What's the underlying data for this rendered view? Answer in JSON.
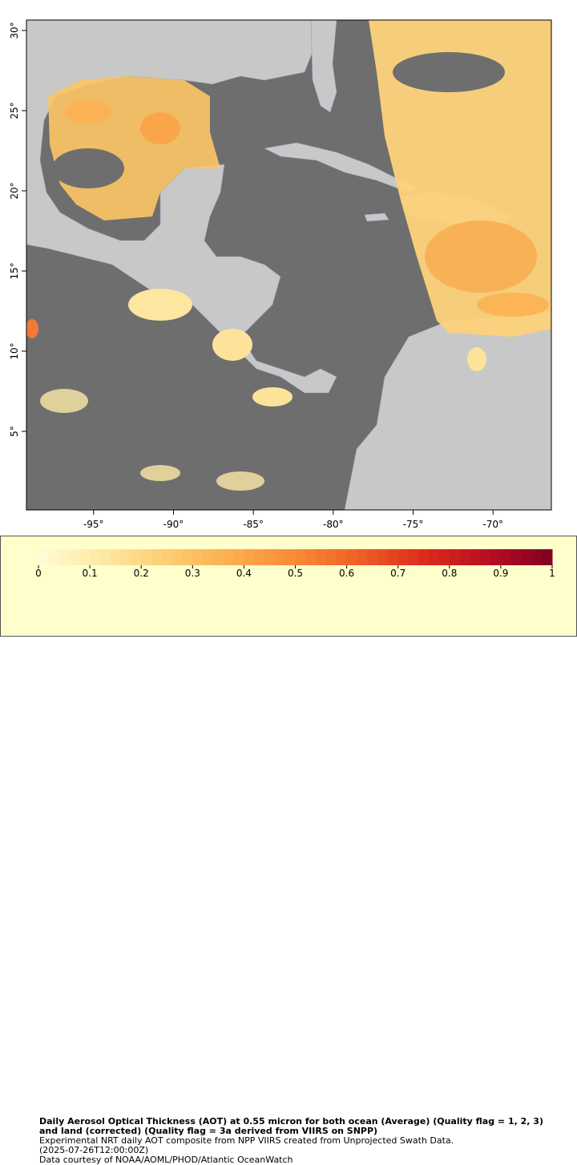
{
  "map": {
    "xlim": [
      -99.2,
      -66.35
    ],
    "ylim": [
      0.1,
      30.65
    ],
    "xticks": [
      {
        "value": -95,
        "label": "-95°"
      },
      {
        "value": -90,
        "label": "-90°"
      },
      {
        "value": -85,
        "label": "-85°"
      },
      {
        "value": -80,
        "label": "-80°"
      },
      {
        "value": -75,
        "label": "-75°"
      },
      {
        "value": -70,
        "label": "-70°"
      }
    ],
    "yticks": [
      {
        "value": 5,
        "label": "5°"
      },
      {
        "value": 10,
        "label": "10°"
      },
      {
        "value": 15,
        "label": "15°"
      },
      {
        "value": 20,
        "label": "20°"
      },
      {
        "value": 25,
        "label": "25°"
      },
      {
        "value": 30,
        "label": "30°"
      }
    ]
  },
  "colorbar": {
    "ticks": [
      0,
      0.1,
      0.2,
      0.3,
      0.4,
      0.5,
      0.6,
      0.7,
      0.8,
      0.9,
      1
    ],
    "colormap": [
      "#fffbd6",
      "#fde9a4",
      "#fdcd72",
      "#fcae4e",
      "#f98a36",
      "#ef5f25",
      "#dc2c1c",
      "#b80f22",
      "#7e0022"
    ]
  },
  "caption": {
    "title": "Daily Aerosol Optical Thickness (AOT) at 0.55 micron for both ocean (Average) (Quality flag = 1, 2, 3) and land (corrected) (Quality flag = 3a derived from VIIRS on SNPP)",
    "lines": [
      "Experimental NRT daily AOT composite from NPP VIIRS created from Unprojected Swath Data.",
      "(2025-07-26T12:00:00Z)",
      "Data courtesy of NOAA/AOML/PHOD/Atlantic OceanWatch"
    ]
  }
}
